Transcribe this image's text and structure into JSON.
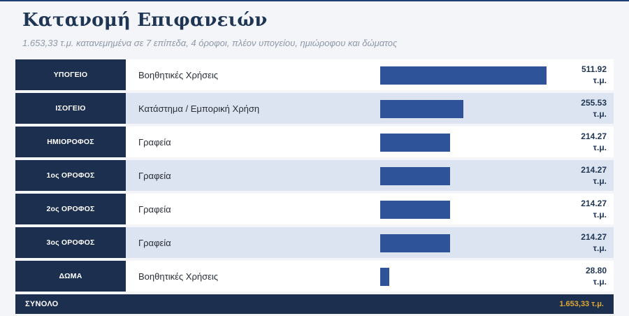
{
  "title": "Κατανομή Επιφανειών",
  "subtitle": "1.653,33 τ.μ. κατανεμημένα σε 7 επίπεδα, 4 όροφοι, πλέον υπογείου, ημιώροφου και δώματος",
  "colors": {
    "header_cell": "#1c2f4f",
    "bar": "#2f5399",
    "row_alt": "#dbe4f0",
    "total_value": "#e0a832"
  },
  "chart_data": {
    "type": "bar",
    "orientation": "horizontal",
    "categories": [
      "ΥΠΟΓΕΙΟ",
      "ΙΣΟΓΕΙΟ",
      "ΗΜΙΟΡΟΦΟΣ",
      "1ος ΟΡΟΦΟΣ",
      "2ος ΟΡΟΦΟΣ",
      "3ος ΟΡΟΦΟΣ",
      "ΔΩΜΑ"
    ],
    "uses": [
      "Βοηθητικές Χρήσεις",
      "Κατάστημα / Εμπορική Χρήση",
      "Γραφεία",
      "Γραφεία",
      "Γραφεία",
      "Γραφεία",
      "Βοηθητικές Χρήσεις"
    ],
    "values": [
      511.92,
      255.53,
      214.27,
      214.27,
      214.27,
      214.27,
      28.8
    ],
    "value_labels": [
      "511.92",
      "255.53",
      "214.27",
      "214.27",
      "214.27",
      "214.27",
      "28.80"
    ],
    "unit": "τ.μ.",
    "xlim": [
      0,
      511.92
    ],
    "total_label": "ΣΥΝΟΛΟ",
    "total_value": "1.653,33 τ.μ."
  }
}
